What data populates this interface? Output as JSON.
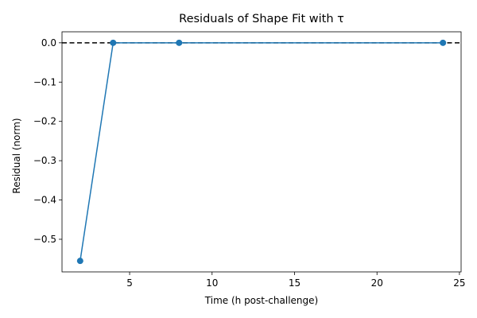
{
  "chart_data": {
    "type": "line",
    "title": "Residuals of Shape Fit with τ",
    "xlabel": "Time (h post-challenge)",
    "ylabel": "Residual (norm)",
    "x": [
      2,
      4,
      8,
      24
    ],
    "series": [
      {
        "values": [
          -0.555,
          0.0,
          0.0,
          0.0
        ],
        "color": "#1f77b4",
        "marker": "circle"
      }
    ],
    "reference_line": {
      "y": 0.0,
      "style": "dashed",
      "color": "#000000"
    },
    "xlim": [
      0.9,
      25.1
    ],
    "ylim": [
      -0.583,
      0.028
    ],
    "xticks": [
      5,
      10,
      15,
      20,
      25
    ],
    "xtick_labels": [
      "5",
      "10",
      "15",
      "20",
      "25"
    ],
    "yticks": [
      0.0,
      -0.1,
      -0.2,
      -0.3,
      -0.4,
      -0.5
    ],
    "ytick_labels": [
      "0.0",
      "−0.1",
      "−0.2",
      "−0.3",
      "−0.4",
      "−0.5"
    ],
    "grid": false,
    "legend": "none"
  }
}
